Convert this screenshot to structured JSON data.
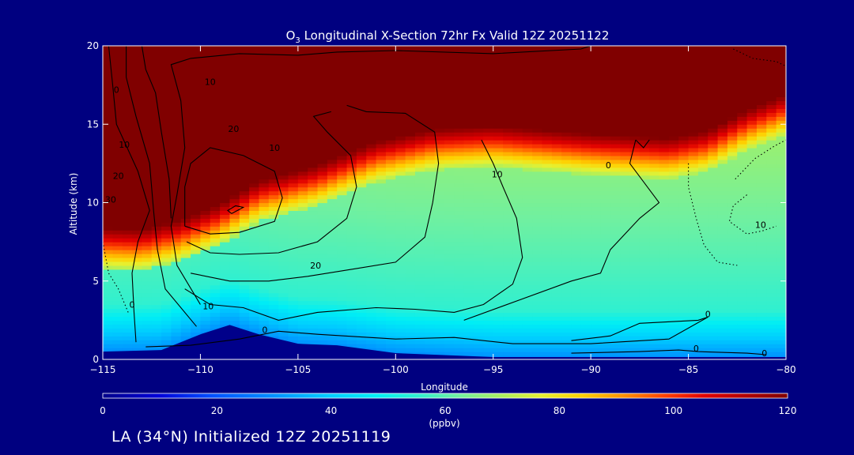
{
  "chart_data": {
    "type": "heatmap",
    "title_prefix": "O",
    "title_subscript": "3",
    "title_rest": " Longitudinal X-Section 72hr  Fx Valid 12Z 20251122",
    "xlabel": "Longitude",
    "ylabel": "Altitude (km)",
    "xlim": [
      -115,
      -80
    ],
    "ylim": [
      0,
      20
    ],
    "x_ticks": [
      -115,
      -110,
      -105,
      -100,
      -95,
      -90,
      -85,
      -80
    ],
    "x_tick_labels": [
      "−115",
      "−110",
      "−105",
      "−100",
      "−95",
      "−90",
      "−85",
      "−80"
    ],
    "y_ticks": [
      0,
      5,
      10,
      15,
      20
    ],
    "y_tick_labels": [
      "0",
      "5",
      "10",
      "15",
      "20"
    ],
    "colorbar": {
      "label": "(ppbv)",
      "range": [
        0,
        120
      ],
      "ticks": [
        0,
        20,
        40,
        60,
        80,
        100,
        120
      ],
      "tick_labels": [
        "0",
        "20",
        "40",
        "60",
        "80",
        "100",
        "120"
      ]
    },
    "heatmap_model": {
      "tropopause_km_by_longitude": [
        {
          "lon": -115,
          "km": 8.0
        },
        {
          "lon": -113,
          "km": 7.9
        },
        {
          "lon": -111,
          "km": 8.5
        },
        {
          "lon": -109,
          "km": 9.5
        },
        {
          "lon": -107,
          "km": 11.0
        },
        {
          "lon": -104,
          "km": 12.0
        },
        {
          "lon": -101,
          "km": 13.5
        },
        {
          "lon": -98,
          "km": 14.3
        },
        {
          "lon": -95,
          "km": 14.5
        },
        {
          "lon": -90,
          "km": 14.0
        },
        {
          "lon": -86,
          "km": 13.7
        },
        {
          "lon": -84,
          "km": 14.2
        },
        {
          "lon": -82,
          "km": 15.5
        },
        {
          "lon": -80,
          "km": 16.5
        }
      ],
      "terrain_km_by_longitude": [
        {
          "lon": -115,
          "km": 0.5
        },
        {
          "lon": -112,
          "km": 0.6
        },
        {
          "lon": -110,
          "km": 1.6
        },
        {
          "lon": -108.5,
          "km": 2.2
        },
        {
          "lon": -107,
          "km": 1.6
        },
        {
          "lon": -105,
          "km": 1.0
        },
        {
          "lon": -103,
          "km": 0.9
        },
        {
          "lon": -100,
          "km": 0.4
        },
        {
          "lon": -95,
          "km": 0.15
        },
        {
          "lon": -80,
          "km": 0.15
        }
      ],
      "stratosphere_ppbv": 120,
      "upper_troposphere_ppbv": 70,
      "midlevel_ppbv": 55,
      "surface_ppbv": 30
    },
    "contours": [
      {
        "value": 0,
        "style": "solid",
        "points": [
          [
            -113.3,
            1.1
          ],
          [
            -113.4,
            3
          ],
          [
            -113.5,
            5.5
          ],
          [
            -113.2,
            7.5
          ],
          [
            -112.6,
            9.5
          ],
          [
            -113.2,
            12
          ],
          [
            -114.3,
            15
          ],
          [
            -114.5,
            17.6
          ],
          [
            -114.7,
            20
          ]
        ]
      },
      {
        "value": 10,
        "style": "solid",
        "points": [
          [
            -110.2,
            2.1
          ],
          [
            -111.8,
            4.5
          ],
          [
            -112.2,
            7
          ],
          [
            -112.4,
            9.5
          ],
          [
            -112.6,
            12.5
          ],
          [
            -113.3,
            15.5
          ],
          [
            -113.8,
            18
          ],
          [
            -113.8,
            20
          ]
        ]
      },
      {
        "value": 10,
        "style": "solid",
        "points": [
          [
            -111.5,
            9
          ],
          [
            -111.6,
            11.5
          ],
          [
            -112.0,
            14.5
          ],
          [
            -112.3,
            17
          ],
          [
            -112.8,
            18.5
          ],
          [
            -113.0,
            20
          ]
        ]
      },
      {
        "value": 20,
        "style": "solid",
        "points": [
          [
            -110,
            3.5
          ],
          [
            -111.2,
            6
          ],
          [
            -111.5,
            8.5
          ],
          [
            -111.2,
            10.5
          ],
          [
            -110.8,
            13.5
          ],
          [
            -111.0,
            16.5
          ],
          [
            -111.5,
            18.8
          ],
          [
            -110.5,
            19.2
          ],
          [
            -108,
            19.5
          ],
          [
            -105,
            19.4
          ],
          [
            -103,
            19.6
          ],
          [
            -100,
            19.7
          ],
          [
            -95,
            19.5
          ],
          [
            -90.5,
            19.8
          ],
          [
            -90,
            20
          ]
        ]
      },
      {
        "value": 10,
        "style": "solid",
        "points": [
          [
            -112.8,
            0.8
          ],
          [
            -110.5,
            0.9
          ],
          [
            -108,
            1.3
          ],
          [
            -106,
            1.8
          ],
          [
            -104,
            1.6
          ],
          [
            -100,
            1.3
          ],
          [
            -97,
            1.4
          ],
          [
            -94,
            1.0
          ],
          [
            -90,
            1.0
          ],
          [
            -86,
            1.3
          ],
          [
            -84,
            2.7
          ]
        ]
      },
      {
        "value": 10,
        "style": "solid",
        "points": [
          [
            -110.8,
            4.5
          ],
          [
            -109.5,
            3.5
          ],
          [
            -107.8,
            3.3
          ],
          [
            -106.0,
            2.5
          ],
          [
            -104,
            3.0
          ],
          [
            -101,
            3.3
          ],
          [
            -99,
            3.2
          ],
          [
            -97,
            3.0
          ],
          [
            -95.5,
            3.5
          ],
          [
            -94.0,
            4.8
          ],
          [
            -93.5,
            6.5
          ],
          [
            -93.8,
            9
          ],
          [
            -94.5,
            11
          ],
          [
            -95,
            12.5
          ],
          [
            -95.6,
            14
          ]
        ]
      },
      {
        "value": 20,
        "style": "solid",
        "points": [
          [
            -110.5,
            5.5
          ],
          [
            -108.5,
            5.0
          ],
          [
            -106.5,
            5.0
          ],
          [
            -104.5,
            5.3
          ],
          [
            -102,
            5.8
          ],
          [
            -100,
            6.2
          ],
          [
            -98.5,
            7.8
          ],
          [
            -98.1,
            10
          ],
          [
            -97.8,
            12.5
          ],
          [
            -98.0,
            14.5
          ],
          [
            -99.5,
            15.7
          ],
          [
            -101.5,
            15.8
          ],
          [
            -102.5,
            16.2
          ]
        ]
      },
      {
        "value": 30,
        "style": "solid",
        "points": [
          [
            -110.7,
            7.5
          ],
          [
            -109.5,
            6.8
          ],
          [
            -108,
            6.7
          ],
          [
            -106,
            6.8
          ],
          [
            -104,
            7.5
          ],
          [
            -102.5,
            9
          ],
          [
            -102.0,
            11
          ],
          [
            -102.3,
            13
          ],
          [
            -103.5,
            14.5
          ],
          [
            -104.2,
            15.5
          ],
          [
            -103.3,
            15.8
          ]
        ]
      },
      {
        "value": 40,
        "style": "solid",
        "points": [
          [
            -110.8,
            8.5
          ],
          [
            -109.5,
            8.0
          ],
          [
            -108,
            8.1
          ],
          [
            -106.2,
            8.8
          ],
          [
            -105.8,
            10.3
          ],
          [
            -106.2,
            12
          ],
          [
            -107.8,
            13
          ],
          [
            -109.5,
            13.5
          ],
          [
            -110.5,
            12.5
          ],
          [
            -110.8,
            11
          ],
          [
            -110.8,
            8.5
          ]
        ]
      },
      {
        "value": 50,
        "style": "solid",
        "points": [
          [
            -108.4,
            9.3
          ],
          [
            -107.8,
            9.7
          ],
          [
            -108.2,
            9.8
          ],
          [
            -108.6,
            9.5
          ],
          [
            -108.4,
            9.3
          ]
        ]
      },
      {
        "value": 10,
        "style": "solid",
        "points": [
          [
            -96.5,
            2.5
          ],
          [
            -91,
            5.0
          ],
          [
            -89.5,
            5.5
          ],
          [
            -89,
            7
          ],
          [
            -87.5,
            9
          ],
          [
            -86.5,
            10
          ],
          [
            -88.0,
            12.5
          ],
          [
            -87.7,
            14
          ]
        ]
      },
      {
        "value": 0,
        "style": "solid",
        "points": [
          [
            -91,
            1.2
          ],
          [
            -89,
            1.5
          ],
          [
            -87.5,
            2.3
          ],
          [
            -84.5,
            2.5
          ],
          [
            -84,
            2.7
          ]
        ]
      },
      {
        "value": 0,
        "style": "solid",
        "points": [
          [
            -91,
            0.4
          ],
          [
            -87.5,
            0.5
          ],
          [
            -85.5,
            0.6
          ],
          [
            -84.5,
            0.5
          ],
          [
            -82,
            0.4
          ],
          [
            -81,
            0.3
          ]
        ]
      },
      {
        "value": 0,
        "style": "solid",
        "points": [
          [
            -87.0,
            14
          ],
          [
            -87.3,
            13.5
          ],
          [
            -87.7,
            14.0
          ]
        ]
      },
      {
        "value": -10,
        "style": "dotted",
        "points": [
          [
            -115,
            7.5
          ],
          [
            -114.7,
            5.5
          ],
          [
            -114.2,
            4.5
          ],
          [
            -113.7,
            3
          ]
        ]
      },
      {
        "value": -10,
        "style": "dotted",
        "points": [
          [
            -85,
            12.5
          ],
          [
            -85,
            11
          ],
          [
            -84.6,
            9
          ],
          [
            -84.2,
            7.3
          ],
          [
            -83.5,
            6.2
          ],
          [
            -82.5,
            6.0
          ]
        ]
      },
      {
        "value": -20,
        "style": "dotted",
        "points": [
          [
            -82,
            10.5
          ],
          [
            -82.7,
            9.8
          ],
          [
            -82.9,
            8.8
          ],
          [
            -82.0,
            8.0
          ],
          [
            -81.2,
            8.2
          ],
          [
            -80.5,
            8.5
          ]
        ]
      },
      {
        "value": -10,
        "style": "dotted",
        "points": [
          [
            -82.6,
            11.5
          ],
          [
            -81.6,
            12.8
          ],
          [
            -80.6,
            13.6
          ],
          [
            -80,
            14
          ]
        ]
      },
      {
        "value": -10,
        "style": "dotted",
        "points": [
          [
            -82.7,
            19.8
          ],
          [
            -81.7,
            19.2
          ],
          [
            -80.5,
            19.0
          ],
          [
            -80,
            18.7
          ]
        ]
      }
    ],
    "contour_labels": [
      {
        "text": "0",
        "lon": -114.3,
        "km": 17.0
      },
      {
        "text": "10",
        "lon": -109.5,
        "km": 17.5
      },
      {
        "text": "20",
        "lon": -108.3,
        "km": 14.5
      },
      {
        "text": "10",
        "lon": -113.9,
        "km": 13.5
      },
      {
        "text": "20",
        "lon": -114.2,
        "km": 11.5
      },
      {
        "text": "30",
        "lon": -114.6,
        "km": 10.0
      },
      {
        "text": "10",
        "lon": -106.2,
        "km": 13.3
      },
      {
        "text": "20",
        "lon": -104.1,
        "km": 5.8
      },
      {
        "text": "10",
        "lon": -109.6,
        "km": 3.2
      },
      {
        "text": "0",
        "lon": -113.5,
        "km": 3.3
      },
      {
        "text": "0",
        "lon": -106.7,
        "km": 1.7
      },
      {
        "text": "10",
        "lon": -94.8,
        "km": 11.6
      },
      {
        "text": "0",
        "lon": -89.1,
        "km": 12.2
      },
      {
        "text": "0",
        "lon": -84.0,
        "km": 2.7
      },
      {
        "text": "0",
        "lon": -84.6,
        "km": 0.5
      },
      {
        "text": "0",
        "lon": -81.1,
        "km": 0.2
      },
      {
        "text": "10",
        "lon": -81.3,
        "km": 8.4
      }
    ]
  },
  "footer": {
    "text": "LA (34°N) Initialized 12Z 20251119"
  }
}
